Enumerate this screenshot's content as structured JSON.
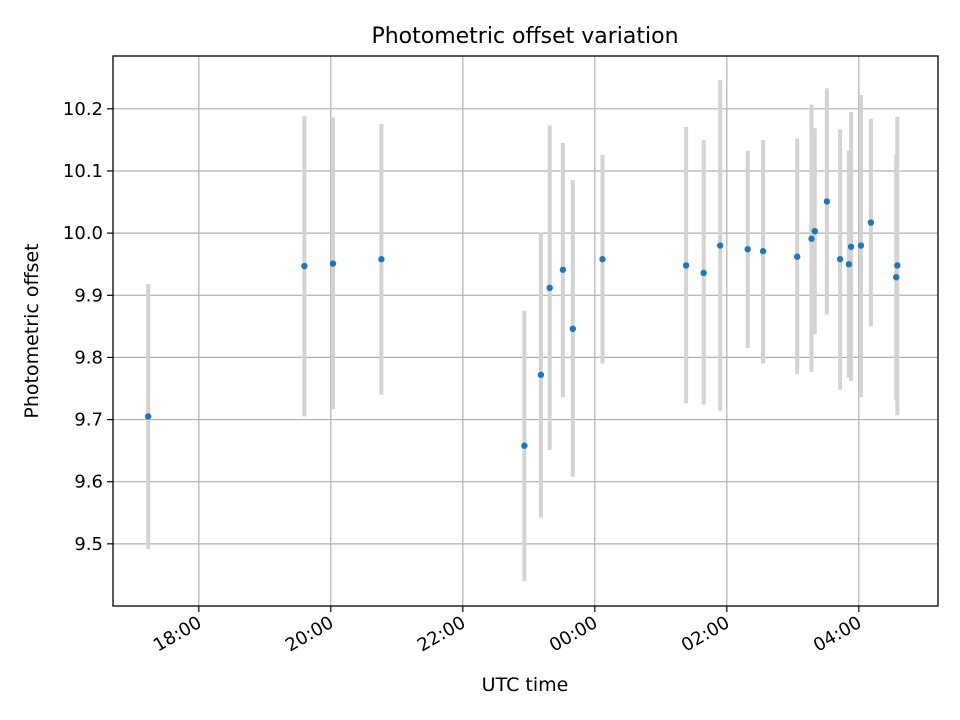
{
  "chart_data": {
    "type": "scatter",
    "title": "Photometric offset variation",
    "xlabel": "UTC time",
    "ylabel": "Photometric offset",
    "x_ticks": [
      "18:00",
      "20:00",
      "22:00",
      "00:00",
      "02:00",
      "04:00"
    ],
    "y_ticks": [
      "9.5",
      "9.6",
      "9.7",
      "9.8",
      "9.9",
      "10.0",
      "10.1",
      "10.2"
    ],
    "xlim": [
      "16:42",
      "05:12"
    ],
    "ylim": [
      9.4,
      10.285
    ],
    "grid": true,
    "errorbar_color": "#d3d3d3",
    "marker_color": "#1f77b4",
    "points": [
      {
        "t": "17:14",
        "y": 9.705,
        "ylow": 9.492,
        "yhigh": 9.918
      },
      {
        "t": "19:36",
        "y": 9.947,
        "ylow": 9.705,
        "yhigh": 10.188
      },
      {
        "t": "20:02",
        "y": 9.951,
        "ylow": 9.717,
        "yhigh": 10.186
      },
      {
        "t": "20:46",
        "y": 9.958,
        "ylow": 9.74,
        "yhigh": 10.176
      },
      {
        "t": "22:56",
        "y": 9.658,
        "ylow": 9.44,
        "yhigh": 9.875
      },
      {
        "t": "23:11",
        "y": 9.772,
        "ylow": 9.542,
        "yhigh": 10.001
      },
      {
        "t": "23:19",
        "y": 9.912,
        "ylow": 9.651,
        "yhigh": 10.173
      },
      {
        "t": "23:31",
        "y": 9.941,
        "ylow": 9.736,
        "yhigh": 10.145
      },
      {
        "t": "23:40",
        "y": 9.846,
        "ylow": 9.608,
        "yhigh": 10.085
      },
      {
        "t": "00:07",
        "y": 9.958,
        "ylow": 9.79,
        "yhigh": 10.126
      },
      {
        "t": "01:23",
        "y": 9.948,
        "ylow": 9.726,
        "yhigh": 10.171
      },
      {
        "t": "01:39",
        "y": 9.936,
        "ylow": 9.724,
        "yhigh": 10.15
      },
      {
        "t": "01:54",
        "y": 9.98,
        "ylow": 9.714,
        "yhigh": 10.246
      },
      {
        "t": "02:19",
        "y": 9.974,
        "ylow": 9.815,
        "yhigh": 10.133
      },
      {
        "t": "02:33",
        "y": 9.971,
        "ylow": 9.79,
        "yhigh": 10.15
      },
      {
        "t": "03:04",
        "y": 9.962,
        "ylow": 9.773,
        "yhigh": 10.152
      },
      {
        "t": "03:17",
        "y": 9.991,
        "ylow": 9.777,
        "yhigh": 10.207
      },
      {
        "t": "03:20",
        "y": 10.003,
        "ylow": 9.837,
        "yhigh": 10.169
      },
      {
        "t": "03:31",
        "y": 10.051,
        "ylow": 9.869,
        "yhigh": 10.233
      },
      {
        "t": "03:43",
        "y": 9.958,
        "ylow": 9.748,
        "yhigh": 10.167
      },
      {
        "t": "03:51",
        "y": 9.95,
        "ylow": 9.767,
        "yhigh": 10.133
      },
      {
        "t": "03:53",
        "y": 9.978,
        "ylow": 9.762,
        "yhigh": 10.195
      },
      {
        "t": "04:02",
        "y": 9.98,
        "ylow": 9.736,
        "yhigh": 10.222
      },
      {
        "t": "04:11",
        "y": 10.017,
        "ylow": 9.85,
        "yhigh": 10.184
      },
      {
        "t": "04:34",
        "y": 9.929,
        "ylow": 9.732,
        "yhigh": 10.126
      },
      {
        "t": "04:35",
        "y": 9.948,
        "ylow": 9.707,
        "yhigh": 10.187
      }
    ]
  }
}
